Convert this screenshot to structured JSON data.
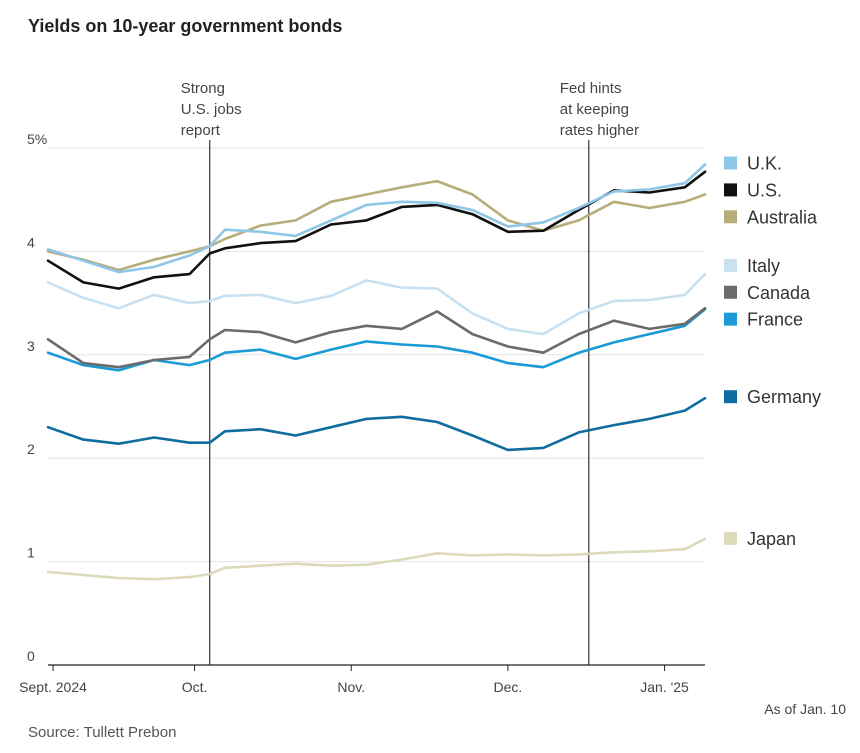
{
  "chart_data": {
    "type": "line",
    "title": "Yields on 10-year government bonds",
    "source": "Source: Tullett Prebon",
    "as_of": "As of Jan. 10",
    "ylim": [
      0,
      5
    ],
    "y_ticks": [
      {
        "value": 0,
        "label": "0"
      },
      {
        "value": 1,
        "label": "1"
      },
      {
        "value": 2,
        "label": "2"
      },
      {
        "value": 3,
        "label": "3"
      },
      {
        "value": 4,
        "label": "4"
      },
      {
        "value": 5,
        "label": "5%"
      }
    ],
    "x_range": [
      "2024-09-02",
      "2025-01-10"
    ],
    "x_ticks": [
      {
        "date": "2024-09-03",
        "label": "Sept. 2024"
      },
      {
        "date": "2024-10-01",
        "label": "Oct."
      },
      {
        "date": "2024-11-01",
        "label": "Nov."
      },
      {
        "date": "2024-12-02",
        "label": "Dec."
      },
      {
        "date": "2025-01-02",
        "label": "Jan. '25"
      }
    ],
    "annotations": [
      {
        "date": "2024-10-04",
        "lines": [
          "Strong",
          "U.S. jobs",
          "report"
        ]
      },
      {
        "date": "2024-12-18",
        "lines": [
          "Fed hints",
          "at keeping",
          "rates higher"
        ]
      }
    ],
    "legend_position": "right",
    "series": [
      {
        "name": "U.K.",
        "color": "#8ec6e8",
        "points": [
          [
            "2024-09-02",
            4.02
          ],
          [
            "2024-09-09",
            3.91
          ],
          [
            "2024-09-16",
            3.8
          ],
          [
            "2024-09-23",
            3.85
          ],
          [
            "2024-09-30",
            3.96
          ],
          [
            "2024-10-04",
            4.05
          ],
          [
            "2024-10-07",
            4.21
          ],
          [
            "2024-10-14",
            4.19
          ],
          [
            "2024-10-21",
            4.15
          ],
          [
            "2024-10-28",
            4.3
          ],
          [
            "2024-11-04",
            4.45
          ],
          [
            "2024-11-11",
            4.48
          ],
          [
            "2024-11-18",
            4.47
          ],
          [
            "2024-11-25",
            4.4
          ],
          [
            "2024-12-02",
            4.24
          ],
          [
            "2024-12-09",
            4.28
          ],
          [
            "2024-12-16",
            4.42
          ],
          [
            "2024-12-23",
            4.58
          ],
          [
            "2024-12-30",
            4.6
          ],
          [
            "2025-01-06",
            4.66
          ],
          [
            "2025-01-10",
            4.84
          ]
        ]
      },
      {
        "name": "U.S.",
        "color": "#111111",
        "points": [
          [
            "2024-09-02",
            3.91
          ],
          [
            "2024-09-09",
            3.7
          ],
          [
            "2024-09-16",
            3.64
          ],
          [
            "2024-09-23",
            3.75
          ],
          [
            "2024-09-30",
            3.78
          ],
          [
            "2024-10-04",
            3.98
          ],
          [
            "2024-10-07",
            4.03
          ],
          [
            "2024-10-14",
            4.08
          ],
          [
            "2024-10-21",
            4.1
          ],
          [
            "2024-10-28",
            4.26
          ],
          [
            "2024-11-04",
            4.3
          ],
          [
            "2024-11-11",
            4.43
          ],
          [
            "2024-11-18",
            4.45
          ],
          [
            "2024-11-25",
            4.36
          ],
          [
            "2024-12-02",
            4.19
          ],
          [
            "2024-12-09",
            4.2
          ],
          [
            "2024-12-16",
            4.4
          ],
          [
            "2024-12-23",
            4.59
          ],
          [
            "2024-12-30",
            4.57
          ],
          [
            "2025-01-06",
            4.62
          ],
          [
            "2025-01-10",
            4.77
          ]
        ]
      },
      {
        "name": "Australia",
        "color": "#b7ad7a",
        "points": [
          [
            "2024-09-02",
            4.0
          ],
          [
            "2024-09-09",
            3.92
          ],
          [
            "2024-09-16",
            3.82
          ],
          [
            "2024-09-23",
            3.92
          ],
          [
            "2024-09-30",
            4.0
          ],
          [
            "2024-10-04",
            4.05
          ],
          [
            "2024-10-07",
            4.12
          ],
          [
            "2024-10-14",
            4.25
          ],
          [
            "2024-10-21",
            4.3
          ],
          [
            "2024-10-28",
            4.48
          ],
          [
            "2024-11-04",
            4.55
          ],
          [
            "2024-11-11",
            4.62
          ],
          [
            "2024-11-18",
            4.68
          ],
          [
            "2024-11-25",
            4.55
          ],
          [
            "2024-12-02",
            4.3
          ],
          [
            "2024-12-09",
            4.2
          ],
          [
            "2024-12-16",
            4.3
          ],
          [
            "2024-12-23",
            4.48
          ],
          [
            "2024-12-30",
            4.42
          ],
          [
            "2025-01-06",
            4.48
          ],
          [
            "2025-01-10",
            4.55
          ]
        ]
      },
      {
        "name": "Italy",
        "color": "#c8e0f0",
        "points": [
          [
            "2024-09-02",
            3.7
          ],
          [
            "2024-09-09",
            3.55
          ],
          [
            "2024-09-16",
            3.45
          ],
          [
            "2024-09-23",
            3.58
          ],
          [
            "2024-09-30",
            3.5
          ],
          [
            "2024-10-04",
            3.52
          ],
          [
            "2024-10-07",
            3.57
          ],
          [
            "2024-10-14",
            3.58
          ],
          [
            "2024-10-21",
            3.5
          ],
          [
            "2024-10-28",
            3.57
          ],
          [
            "2024-11-04",
            3.72
          ],
          [
            "2024-11-11",
            3.65
          ],
          [
            "2024-11-18",
            3.64
          ],
          [
            "2024-11-25",
            3.4
          ],
          [
            "2024-12-02",
            3.25
          ],
          [
            "2024-12-09",
            3.2
          ],
          [
            "2024-12-16",
            3.4
          ],
          [
            "2024-12-23",
            3.52
          ],
          [
            "2024-12-30",
            3.53
          ],
          [
            "2025-01-06",
            3.58
          ],
          [
            "2025-01-10",
            3.78
          ]
        ]
      },
      {
        "name": "Canada",
        "color": "#6b6b6b",
        "points": [
          [
            "2024-09-02",
            3.15
          ],
          [
            "2024-09-09",
            2.92
          ],
          [
            "2024-09-16",
            2.88
          ],
          [
            "2024-09-23",
            2.95
          ],
          [
            "2024-09-30",
            2.98
          ],
          [
            "2024-10-04",
            3.15
          ],
          [
            "2024-10-07",
            3.24
          ],
          [
            "2024-10-14",
            3.22
          ],
          [
            "2024-10-21",
            3.12
          ],
          [
            "2024-10-28",
            3.22
          ],
          [
            "2024-11-04",
            3.28
          ],
          [
            "2024-11-11",
            3.25
          ],
          [
            "2024-11-18",
            3.42
          ],
          [
            "2024-11-25",
            3.2
          ],
          [
            "2024-12-02",
            3.08
          ],
          [
            "2024-12-09",
            3.02
          ],
          [
            "2024-12-16",
            3.2
          ],
          [
            "2024-12-23",
            3.33
          ],
          [
            "2024-12-30",
            3.25
          ],
          [
            "2025-01-06",
            3.3
          ],
          [
            "2025-01-10",
            3.45
          ]
        ]
      },
      {
        "name": "France",
        "color": "#1a9ad6",
        "points": [
          [
            "2024-09-02",
            3.02
          ],
          [
            "2024-09-09",
            2.9
          ],
          [
            "2024-09-16",
            2.85
          ],
          [
            "2024-09-23",
            2.95
          ],
          [
            "2024-09-30",
            2.9
          ],
          [
            "2024-10-04",
            2.95
          ],
          [
            "2024-10-07",
            3.02
          ],
          [
            "2024-10-14",
            3.05
          ],
          [
            "2024-10-21",
            2.96
          ],
          [
            "2024-10-28",
            3.05
          ],
          [
            "2024-11-04",
            3.13
          ],
          [
            "2024-11-11",
            3.1
          ],
          [
            "2024-11-18",
            3.08
          ],
          [
            "2024-11-25",
            3.02
          ],
          [
            "2024-12-02",
            2.92
          ],
          [
            "2024-12-09",
            2.88
          ],
          [
            "2024-12-16",
            3.02
          ],
          [
            "2024-12-23",
            3.12
          ],
          [
            "2024-12-30",
            3.2
          ],
          [
            "2025-01-06",
            3.28
          ],
          [
            "2025-01-10",
            3.44
          ]
        ]
      },
      {
        "name": "Germany",
        "color": "#0f6c9e",
        "points": [
          [
            "2024-09-02",
            2.3
          ],
          [
            "2024-09-09",
            2.18
          ],
          [
            "2024-09-16",
            2.14
          ],
          [
            "2024-09-23",
            2.2
          ],
          [
            "2024-09-30",
            2.15
          ],
          [
            "2024-10-04",
            2.15
          ],
          [
            "2024-10-07",
            2.26
          ],
          [
            "2024-10-14",
            2.28
          ],
          [
            "2024-10-21",
            2.22
          ],
          [
            "2024-10-28",
            2.3
          ],
          [
            "2024-11-04",
            2.38
          ],
          [
            "2024-11-11",
            2.4
          ],
          [
            "2024-11-18",
            2.35
          ],
          [
            "2024-11-25",
            2.22
          ],
          [
            "2024-12-02",
            2.08
          ],
          [
            "2024-12-09",
            2.1
          ],
          [
            "2024-12-16",
            2.25
          ],
          [
            "2024-12-23",
            2.32
          ],
          [
            "2024-12-30",
            2.38
          ],
          [
            "2025-01-06",
            2.46
          ],
          [
            "2025-01-10",
            2.58
          ]
        ]
      },
      {
        "name": "Japan",
        "color": "#ddd9bb",
        "points": [
          [
            "2024-09-02",
            0.9
          ],
          [
            "2024-09-09",
            0.87
          ],
          [
            "2024-09-16",
            0.84
          ],
          [
            "2024-09-23",
            0.83
          ],
          [
            "2024-09-30",
            0.85
          ],
          [
            "2024-10-04",
            0.88
          ],
          [
            "2024-10-07",
            0.94
          ],
          [
            "2024-10-14",
            0.96
          ],
          [
            "2024-10-21",
            0.98
          ],
          [
            "2024-10-28",
            0.96
          ],
          [
            "2024-11-04",
            0.97
          ],
          [
            "2024-11-11",
            1.02
          ],
          [
            "2024-11-18",
            1.08
          ],
          [
            "2024-11-25",
            1.06
          ],
          [
            "2024-12-02",
            1.07
          ],
          [
            "2024-12-09",
            1.06
          ],
          [
            "2024-12-16",
            1.07
          ],
          [
            "2024-12-23",
            1.09
          ],
          [
            "2024-12-30",
            1.1
          ],
          [
            "2025-01-06",
            1.12
          ],
          [
            "2025-01-10",
            1.22
          ]
        ]
      }
    ],
    "legend": [
      {
        "name": "U.K.",
        "color": "#8ec6e8",
        "y": 4.85
      },
      {
        "name": "U.S.",
        "color": "#111111",
        "y": 4.59
      },
      {
        "name": "Australia",
        "color": "#b7ad7a",
        "y": 4.33
      },
      {
        "name": "Italy",
        "color": "#c8e0f0",
        "y": 3.86
      },
      {
        "name": "Canada",
        "color": "#6b6b6b",
        "y": 3.6
      },
      {
        "name": "France",
        "color": "#1a9ad6",
        "y": 3.34
      },
      {
        "name": "Germany",
        "color": "#0f6c9e",
        "y": 2.59
      },
      {
        "name": "Japan",
        "color": "#ddd9bb",
        "y": 1.22
      }
    ]
  }
}
